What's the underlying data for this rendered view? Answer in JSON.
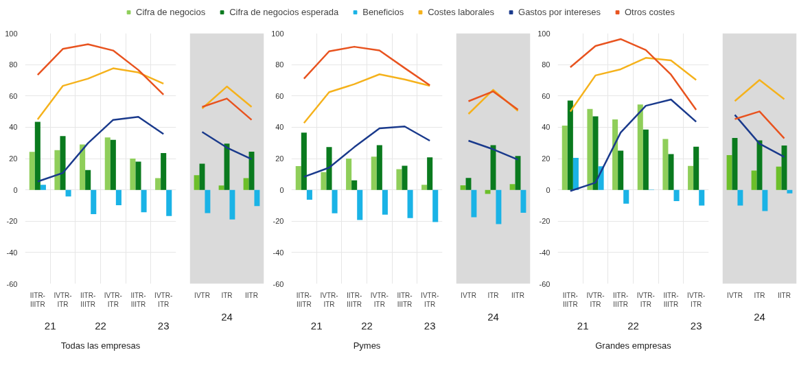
{
  "chart_data": [
    {
      "type": "bar",
      "title": "Todas las empresas",
      "categories": [
        "IITR-IIITR",
        "IVTR-ITR",
        "IITR-IIITR",
        "IVTR-ITR",
        "IITR-IIITR",
        "IVTR-ITR"
      ],
      "annotations": [
        "21",
        "22",
        "23"
      ],
      "ylim": [
        -60,
        100
      ],
      "yticks": [
        -60,
        -40,
        -20,
        0,
        20,
        40,
        60,
        80,
        100
      ],
      "grid": true,
      "legend": "top",
      "series": [
        {
          "name": "Cifra de negocios",
          "color": "#8fce5a",
          "values": [
            24.3,
            25.4,
            29,
            33.5,
            20,
            7.5
          ]
        },
        {
          "name": "Cifra de negocios esperada",
          "color": "#0a7a1e",
          "values": [
            43.5,
            34.4,
            12.7,
            32,
            18,
            23.5
          ]
        },
        {
          "name": "Beneficios",
          "color": "#1ab3e6",
          "values": [
            3.2,
            -4.2,
            -15.5,
            -9.8,
            -14.3,
            -16.7
          ]
        },
        {
          "name": "Costes laborales",
          "type": "line",
          "color": "#f5b21c",
          "values": [
            45,
            66.4,
            71,
            77.6,
            75,
            67.8
          ]
        },
        {
          "name": "Gastos por intereses",
          "type": "line",
          "color": "#1a3a8c",
          "values": [
            5.3,
            10.8,
            29.8,
            44.7,
            46.6,
            35.7
          ]
        },
        {
          "name": "Otros costes",
          "type": "line",
          "color": "#e8531f",
          "values": [
            73.4,
            90,
            93,
            89,
            76.6,
            60.8
          ]
        }
      ]
    },
    {
      "type": "bar",
      "categories": [
        "IVTR",
        "ITR",
        "IITR"
      ],
      "annotations": [
        "24"
      ],
      "ylim": [
        -60,
        100
      ],
      "yticks": [
        -60,
        -40,
        -20,
        0,
        20,
        40,
        60,
        80,
        100
      ],
      "tick_labels": "x",
      "bands": [
        {
          "axis": "y",
          "from": -60,
          "to": 100,
          "label": null,
          "color": "#dadada"
        }
      ],
      "series": [
        {
          "color": "#6cbf2a",
          "values": [
            9.4,
            2.8,
            7.5
          ]
        },
        {
          "color": "#0a7a1e",
          "values": [
            16.7,
            29.5,
            24.4
          ]
        },
        {
          "color": "#1ab3e6",
          "values": [
            -14.8,
            -18.9,
            -10.4
          ]
        },
        {
          "type": "line",
          "color": "#f5b21c",
          "values": [
            52,
            66,
            53
          ]
        },
        {
          "type": "line",
          "color": "#1a3a8c",
          "values": [
            37,
            27,
            19.6
          ]
        },
        {
          "type": "line",
          "color": "#e8531f",
          "values": [
            53,
            58.3,
            44.7
          ]
        }
      ]
    },
    {
      "type": "bar",
      "title": "Pymes",
      "categories": [
        "IITR-IIITR",
        "IVTR-ITR",
        "IITR-IIITR",
        "IVTR-ITR",
        "IITR-IIITR",
        "IVTR-ITR"
      ],
      "annotations": [
        "21",
        "22",
        "23"
      ],
      "ylim": [
        -60,
        100
      ],
      "yticks": [
        -60,
        -40,
        -20,
        0,
        20,
        40,
        60,
        80,
        100
      ],
      "grid": true,
      "series": [
        {
          "color": "#8fce5a",
          "values": [
            15.2,
            11.3,
            20,
            21.2,
            13.2,
            3.2
          ]
        },
        {
          "color": "#0a7a1e",
          "values": [
            36.5,
            27.3,
            6.1,
            28.5,
            15.4,
            20.8
          ]
        },
        {
          "color": "#1ab3e6",
          "values": [
            -6.3,
            -15,
            -19.2,
            -15.8,
            -18,
            -20.6
          ]
        },
        {
          "type": "line",
          "color": "#f5b21c",
          "values": [
            42.7,
            62.4,
            67.5,
            73.8,
            70.5,
            66.5
          ]
        },
        {
          "type": "line",
          "color": "#1a3a8c",
          "values": [
            8.3,
            14.2,
            27.3,
            39.3,
            40.5,
            31.4
          ]
        },
        {
          "type": "line",
          "color": "#e8531f",
          "values": [
            71,
            88.5,
            91.4,
            89,
            77.8,
            66.8
          ]
        }
      ]
    },
    {
      "type": "bar",
      "categories": [
        "IVTR",
        "ITR",
        "IITR"
      ],
      "annotations": [
        "24"
      ],
      "ylim": [
        -60,
        100
      ],
      "yticks": [
        -60,
        -40,
        -20,
        0,
        20,
        40,
        60,
        80,
        100
      ],
      "tick_labels": "x",
      "bands": [
        {
          "axis": "y",
          "from": -60,
          "to": 100,
          "label": null,
          "color": "#dadada"
        }
      ],
      "series": [
        {
          "color": "#6cbf2a",
          "values": [
            2.9,
            -2.6,
            3.7
          ]
        },
        {
          "color": "#0a7a1e",
          "values": [
            7.6,
            28.5,
            21.6
          ]
        },
        {
          "color": "#1ab3e6",
          "values": [
            -17.5,
            -21.9,
            -14.6
          ]
        },
        {
          "type": "line",
          "color": "#f5b21c",
          "values": [
            48.5,
            63.9,
            50.4
          ]
        },
        {
          "type": "line",
          "color": "#1a3a8c",
          "values": [
            31.4,
            25.9,
            19.3
          ]
        },
        {
          "type": "line",
          "color": "#e8531f",
          "values": [
            56.6,
            62.9,
            51.2
          ]
        }
      ]
    },
    {
      "type": "bar",
      "title": "Grandes empresas",
      "categories": [
        "IITR-IIITR",
        "IVTR-ITR",
        "IITR-IIITR",
        "IVTR-ITR",
        "IITR-IIITR",
        "IVTR-ITR"
      ],
      "annotations": [
        "21",
        "22",
        "23"
      ],
      "ylim": [
        -60,
        100
      ],
      "yticks": [
        -60,
        -40,
        -20,
        0,
        20,
        40,
        60,
        80,
        100
      ],
      "grid": true,
      "series": [
        {
          "color": "#8fce5a",
          "values": [
            41,
            51.7,
            45,
            54.5,
            32.5,
            15.3
          ]
        },
        {
          "color": "#0a7a1e",
          "values": [
            57,
            47,
            25,
            38.5,
            22.8,
            27.6
          ]
        },
        {
          "color": "#1ab3e6",
          "values": [
            20.4,
            15.1,
            -8.8,
            0.2,
            -7.2,
            -10
          ]
        },
        {
          "type": "line",
          "color": "#f5b21c",
          "values": [
            50,
            73.1,
            77,
            84.3,
            82.7,
            70.2
          ]
        },
        {
          "type": "line",
          "color": "#1a3a8c",
          "values": [
            -0.7,
            4.6,
            36.6,
            53.7,
            57.7,
            43.5
          ]
        },
        {
          "type": "line",
          "color": "#e8531f",
          "values": [
            78.3,
            91.9,
            96.3,
            89.3,
            73.6,
            51.1
          ]
        }
      ]
    },
    {
      "type": "bar",
      "categories": [
        "IVTR",
        "ITR",
        "IITR"
      ],
      "annotations": [
        "24"
      ],
      "ylim": [
        -60,
        100
      ],
      "yticks": [
        -60,
        -40,
        -20,
        0,
        20,
        40,
        60,
        80,
        100
      ],
      "tick_labels": "x",
      "bands": [
        {
          "axis": "y",
          "from": -60,
          "to": 100,
          "label": null,
          "color": "#dadada"
        }
      ],
      "series": [
        {
          "color": "#6cbf2a",
          "values": [
            22.2,
            12.3,
            14.8
          ]
        },
        {
          "color": "#0a7a1e",
          "values": [
            33.2,
            31.6,
            28.3
          ]
        },
        {
          "color": "#1ab3e6",
          "values": [
            -10,
            -13.5,
            -2.3
          ]
        },
        {
          "type": "line",
          "color": "#f5b21c",
          "values": [
            56.7,
            70.2,
            57.9
          ]
        },
        {
          "type": "line",
          "color": "#1a3a8c",
          "values": [
            47.9,
            29.5,
            21
          ]
        },
        {
          "type": "line",
          "color": "#e8531f",
          "values": [
            45.2,
            50.1,
            32.9
          ]
        }
      ]
    }
  ]
}
